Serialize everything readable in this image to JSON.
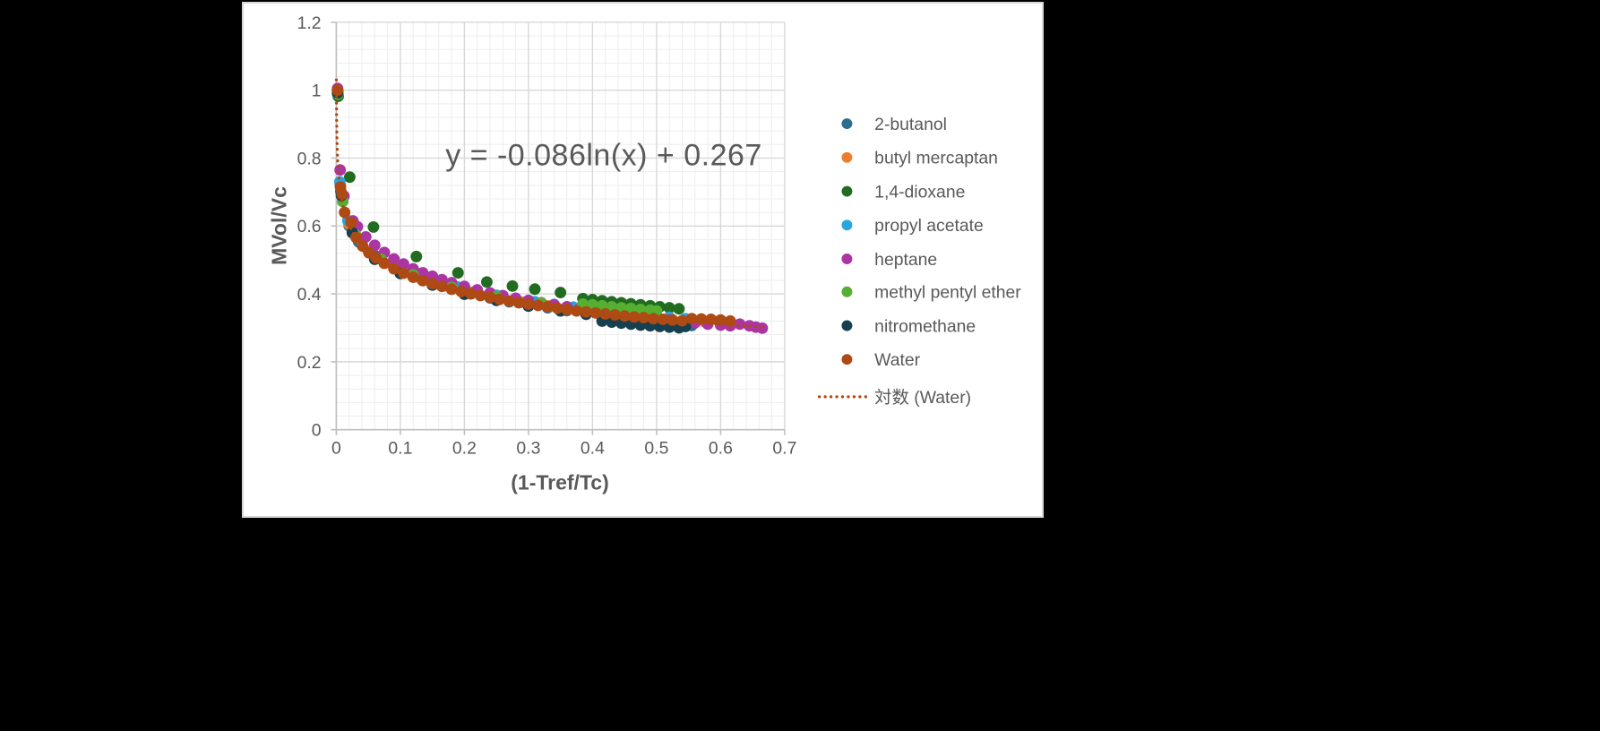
{
  "page": {
    "background": "#000000",
    "panel_background": "#FFFFFF",
    "panel_border": "#D8D8D8"
  },
  "chart_data": {
    "type": "scatter",
    "title": "",
    "equation": "y = -0.086ln(x) + 0.267",
    "xlabel": "(1-Tref/Tc)",
    "ylabel": "MVol/Vc",
    "xlim": [
      0,
      0.7
    ],
    "ylim": [
      0,
      1.2
    ],
    "xticks": [
      [
        0,
        "0"
      ],
      [
        0.1,
        "0.1"
      ],
      [
        0.2,
        "0.2"
      ],
      [
        0.3,
        "0.3"
      ],
      [
        0.4,
        "0.4"
      ],
      [
        0.5,
        "0.5"
      ],
      [
        0.6,
        "0.6"
      ],
      [
        0.7,
        "0.7"
      ]
    ],
    "yticks": [
      [
        0,
        "0"
      ],
      [
        0.2,
        "0.2"
      ],
      [
        0.4,
        "0.4"
      ],
      [
        0.6,
        "0.6"
      ],
      [
        0.8,
        "0.8"
      ],
      [
        1,
        "1"
      ],
      [
        1.2,
        "1.2"
      ]
    ],
    "grid": {
      "x_minor_step": 0.02,
      "y_minor_step": 0.04,
      "minor_color": "#EDEDED",
      "major_color": "#D8D8D8",
      "axis_color": "#BFBFBF"
    },
    "text_color": "#595959",
    "legend_position": "right",
    "series": [
      {
        "name": "2-butanol",
        "color": "#2B6E8D",
        "points": [
          [
            0.0025,
            0.995
          ],
          [
            0.007,
            0.702
          ],
          [
            0.02,
            0.601
          ],
          [
            0.035,
            0.553
          ],
          [
            0.06,
            0.513
          ],
          [
            0.09,
            0.477
          ],
          [
            0.12,
            0.451
          ],
          [
            0.15,
            0.431
          ],
          [
            0.18,
            0.414
          ],
          [
            0.21,
            0.4
          ],
          [
            0.24,
            0.388
          ],
          [
            0.27,
            0.377
          ],
          [
            0.3,
            0.368
          ],
          [
            0.33,
            0.359
          ],
          [
            0.36,
            0.351
          ],
          [
            0.39,
            0.344
          ],
          [
            0.415,
            0.332
          ],
          [
            0.44,
            0.327
          ],
          [
            0.465,
            0.322
          ],
          [
            0.49,
            0.317
          ],
          [
            0.515,
            0.313
          ],
          [
            0.54,
            0.309
          ],
          [
            0.555,
            0.307
          ]
        ]
      },
      {
        "name": "butyl mercaptan",
        "color": "#EF7D2F",
        "points": [
          [
            0.002,
            0.998
          ],
          [
            0.006,
            0.722
          ],
          [
            0.02,
            0.606
          ],
          [
            0.05,
            0.526
          ],
          [
            0.09,
            0.478
          ],
          [
            0.13,
            0.448
          ],
          [
            0.17,
            0.424
          ],
          [
            0.21,
            0.405
          ],
          [
            0.25,
            0.389
          ],
          [
            0.29,
            0.376
          ],
          [
            0.33,
            0.365
          ],
          [
            0.37,
            0.355
          ],
          [
            0.41,
            0.346
          ],
          [
            0.45,
            0.338
          ],
          [
            0.49,
            0.331
          ],
          [
            0.52,
            0.326
          ],
          [
            0.55,
            0.321
          ],
          [
            0.575,
            0.318
          ],
          [
            0.6,
            0.314
          ]
        ]
      },
      {
        "name": "1,4-dioxane",
        "color": "#216C21",
        "points": [
          [
            0.003,
            0.982
          ],
          [
            0.021,
            0.744
          ],
          [
            0.058,
            0.597
          ],
          [
            0.125,
            0.51
          ],
          [
            0.19,
            0.462
          ],
          [
            0.235,
            0.435
          ],
          [
            0.275,
            0.423
          ],
          [
            0.31,
            0.414
          ],
          [
            0.35,
            0.404
          ],
          [
            0.385,
            0.386
          ],
          [
            0.4,
            0.383
          ],
          [
            0.415,
            0.38
          ],
          [
            0.43,
            0.377
          ],
          [
            0.445,
            0.374
          ],
          [
            0.46,
            0.371
          ],
          [
            0.475,
            0.368
          ],
          [
            0.49,
            0.365
          ],
          [
            0.505,
            0.362
          ],
          [
            0.52,
            0.359
          ],
          [
            0.535,
            0.356
          ]
        ]
      },
      {
        "name": "propyl acetate",
        "color": "#29A5DE",
        "points": [
          [
            0.002,
            0.99
          ],
          [
            0.0055,
            0.73
          ],
          [
            0.018,
            0.616
          ],
          [
            0.04,
            0.549
          ],
          [
            0.07,
            0.503
          ],
          [
            0.1,
            0.476
          ],
          [
            0.13,
            0.453
          ],
          [
            0.16,
            0.435
          ],
          [
            0.19,
            0.42
          ],
          [
            0.22,
            0.407
          ],
          [
            0.25,
            0.396
          ],
          [
            0.28,
            0.386
          ],
          [
            0.31,
            0.377
          ],
          [
            0.34,
            0.369
          ],
          [
            0.37,
            0.361
          ],
          [
            0.4,
            0.354
          ],
          [
            0.43,
            0.348
          ],
          [
            0.46,
            0.342
          ],
          [
            0.49,
            0.336
          ],
          [
            0.52,
            0.331
          ],
          [
            0.545,
            0.327
          ]
        ]
      },
      {
        "name": "heptane",
        "color": "#AC35A4",
        "points": [
          [
            0.002,
            1.005
          ],
          [
            0.006,
            0.765
          ],
          [
            0.012,
            0.688
          ],
          [
            0.026,
            0.615
          ],
          [
            0.033,
            0.598
          ],
          [
            0.046,
            0.568
          ],
          [
            0.06,
            0.543
          ],
          [
            0.075,
            0.522
          ],
          [
            0.09,
            0.503
          ],
          [
            0.105,
            0.488
          ],
          [
            0.12,
            0.474
          ],
          [
            0.135,
            0.462
          ],
          [
            0.15,
            0.452
          ],
          [
            0.165,
            0.442
          ],
          [
            0.18,
            0.433
          ],
          [
            0.2,
            0.422
          ],
          [
            0.22,
            0.412
          ],
          [
            0.24,
            0.403
          ],
          [
            0.26,
            0.395
          ],
          [
            0.28,
            0.387
          ],
          [
            0.3,
            0.381
          ],
          [
            0.32,
            0.374
          ],
          [
            0.34,
            0.368
          ],
          [
            0.36,
            0.362
          ],
          [
            0.38,
            0.356
          ],
          [
            0.4,
            0.351
          ],
          [
            0.42,
            0.346
          ],
          [
            0.44,
            0.341
          ],
          [
            0.46,
            0.336
          ],
          [
            0.48,
            0.332
          ],
          [
            0.5,
            0.328
          ],
          [
            0.52,
            0.323
          ],
          [
            0.54,
            0.319
          ],
          [
            0.56,
            0.315
          ],
          [
            0.58,
            0.311
          ],
          [
            0.6,
            0.308
          ],
          [
            0.615,
            0.306
          ],
          [
            0.63,
            0.311
          ],
          [
            0.645,
            0.306
          ],
          [
            0.655,
            0.302
          ],
          [
            0.665,
            0.299
          ]
        ]
      },
      {
        "name": "methyl pentyl ether",
        "color": "#57AF31",
        "points": [
          [
            0.0025,
            0.988
          ],
          [
            0.01,
            0.672
          ],
          [
            0.03,
            0.574
          ],
          [
            0.07,
            0.502
          ],
          [
            0.12,
            0.456
          ],
          [
            0.18,
            0.419
          ],
          [
            0.25,
            0.392
          ],
          [
            0.32,
            0.373
          ],
          [
            0.385,
            0.37
          ],
          [
            0.4,
            0.368
          ],
          [
            0.415,
            0.365
          ],
          [
            0.43,
            0.362
          ],
          [
            0.445,
            0.359
          ],
          [
            0.46,
            0.357
          ],
          [
            0.475,
            0.354
          ],
          [
            0.49,
            0.352
          ],
          [
            0.5,
            0.35
          ]
        ]
      },
      {
        "name": "nitromethane",
        "color": "#16404F",
        "points": [
          [
            0.002,
            0.992
          ],
          [
            0.008,
            0.69
          ],
          [
            0.025,
            0.58
          ],
          [
            0.06,
            0.502
          ],
          [
            0.1,
            0.46
          ],
          [
            0.15,
            0.426
          ],
          [
            0.2,
            0.399
          ],
          [
            0.25,
            0.381
          ],
          [
            0.3,
            0.364
          ],
          [
            0.35,
            0.35
          ],
          [
            0.39,
            0.34
          ],
          [
            0.415,
            0.32
          ],
          [
            0.43,
            0.317
          ],
          [
            0.445,
            0.314
          ],
          [
            0.46,
            0.311
          ],
          [
            0.475,
            0.308
          ],
          [
            0.49,
            0.306
          ],
          [
            0.505,
            0.304
          ],
          [
            0.52,
            0.302
          ],
          [
            0.535,
            0.3
          ],
          [
            0.545,
            0.304
          ]
        ]
      },
      {
        "name": "Water",
        "color": "#AE4A13",
        "points": [
          [
            0.002,
            1.0
          ],
          [
            0.0065,
            0.715
          ],
          [
            0.009,
            0.694
          ],
          [
            0.013,
            0.64
          ],
          [
            0.023,
            0.61
          ],
          [
            0.031,
            0.566
          ],
          [
            0.041,
            0.541
          ],
          [
            0.051,
            0.521
          ],
          [
            0.062,
            0.506
          ],
          [
            0.075,
            0.49
          ],
          [
            0.09,
            0.474
          ],
          [
            0.105,
            0.461
          ],
          [
            0.12,
            0.449
          ],
          [
            0.135,
            0.439
          ],
          [
            0.15,
            0.43
          ],
          [
            0.165,
            0.422
          ],
          [
            0.18,
            0.414
          ],
          [
            0.195,
            0.407
          ],
          [
            0.21,
            0.401
          ],
          [
            0.225,
            0.395
          ],
          [
            0.24,
            0.39
          ],
          [
            0.255,
            0.384
          ],
          [
            0.27,
            0.379
          ],
          [
            0.285,
            0.374
          ],
          [
            0.3,
            0.37
          ],
          [
            0.315,
            0.366
          ],
          [
            0.33,
            0.362
          ],
          [
            0.345,
            0.358
          ],
          [
            0.36,
            0.354
          ],
          [
            0.375,
            0.35
          ],
          [
            0.39,
            0.347
          ],
          [
            0.405,
            0.344
          ],
          [
            0.42,
            0.341
          ],
          [
            0.435,
            0.338
          ],
          [
            0.45,
            0.335
          ],
          [
            0.465,
            0.332
          ],
          [
            0.48,
            0.33
          ],
          [
            0.495,
            0.327
          ],
          [
            0.51,
            0.325
          ],
          [
            0.525,
            0.323
          ],
          [
            0.54,
            0.321
          ],
          [
            0.555,
            0.327
          ],
          [
            0.57,
            0.326
          ],
          [
            0.585,
            0.325
          ],
          [
            0.6,
            0.323
          ],
          [
            0.615,
            0.32
          ]
        ]
      }
    ],
    "trendline": {
      "label": "対数 (Water)",
      "color": "#AE4A13",
      "style": "dotted",
      "a": -0.086,
      "b": 0.267,
      "x_range": [
        0.00014,
        0.665
      ]
    }
  }
}
